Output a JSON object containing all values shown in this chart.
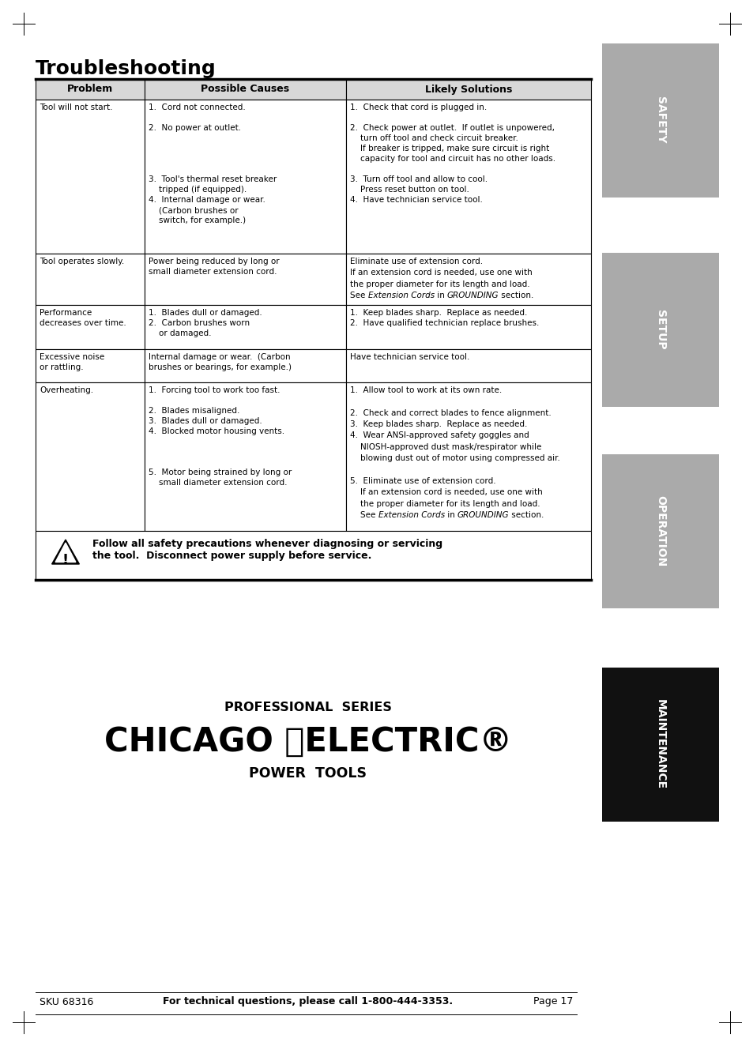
{
  "title": "Troubleshooting",
  "page_bg": "#ffffff",
  "sidebar_tabs": [
    {
      "label": "SAFETY",
      "bg": "#aaaaaa",
      "text": "#ffffff"
    },
    {
      "label": "SETUP",
      "bg": "#aaaaaa",
      "text": "#ffffff"
    },
    {
      "label": "OPERATION",
      "bg": "#aaaaaa",
      "text": "#ffffff"
    },
    {
      "label": "MAINTENANCE",
      "bg": "#111111",
      "text": "#ffffff"
    }
  ],
  "table_header": [
    "Problem",
    "Possible Causes",
    "Likely Solutions"
  ],
  "warning_text": "Follow all safety precautions whenever diagnosing or servicing\nthe tool.  Disconnect power supply before service.",
  "footer_left": "SKU 68316",
  "footer_center": "For technical questions, please call 1-800-444-3353.",
  "footer_right": "Page 17",
  "brand_line1": "PROFESSIONAL  SERIES",
  "brand_line2": "CHICAGO ⓔELECTRIC®",
  "brand_line3": "POWER  TOOLS"
}
